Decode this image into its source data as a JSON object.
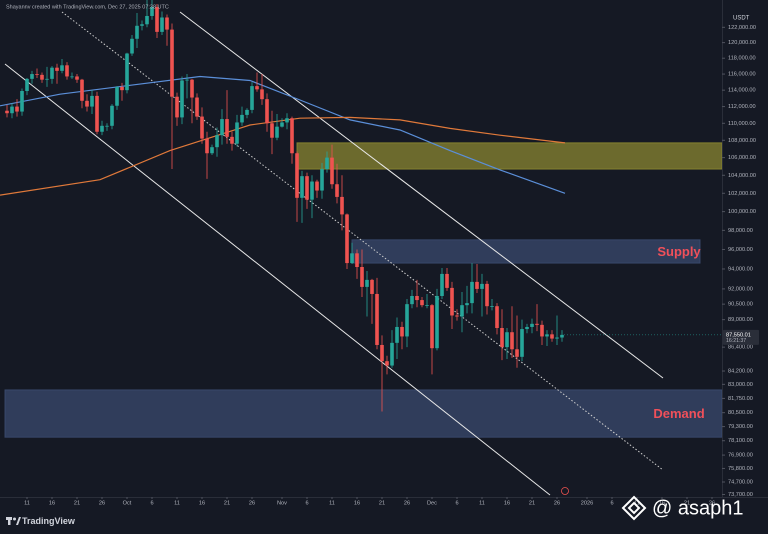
{
  "chart_data": {
    "type": "candlestick",
    "source_note": "Shayannv created with TradingView.com, Dec 27, 2025 07:38 UTC",
    "currency": "USDT",
    "brand": "TradingView",
    "watermark": "@ asaph1",
    "log_scale": true,
    "grid": false,
    "ylim": [
      73500,
      124300
    ],
    "xlim": [
      -5.4,
      139
    ],
    "yticks": [
      {
        "value": 122000,
        "label": "122,000.00"
      },
      {
        "value": 120000,
        "label": "120,000.00"
      },
      {
        "value": 118000,
        "label": "118,000.00"
      },
      {
        "value": 116000,
        "label": "116,000.00"
      },
      {
        "value": 114000,
        "label": "114,000.00"
      },
      {
        "value": 112000,
        "label": "112,000.00"
      },
      {
        "value": 110000,
        "label": "110,000.00"
      },
      {
        "value": 108000,
        "label": "108,000.00"
      },
      {
        "value": 106000,
        "label": "106,000.00"
      },
      {
        "value": 104000,
        "label": "104,000.00"
      },
      {
        "value": 102000,
        "label": "102,000.00"
      },
      {
        "value": 100000,
        "label": "100,000.00"
      },
      {
        "value": 98000,
        "label": "98,000.00"
      },
      {
        "value": 96000,
        "label": "96,000.00"
      },
      {
        "value": 94000,
        "label": "94,000.00"
      },
      {
        "value": 92000,
        "label": "92,000.00"
      },
      {
        "value": 90500,
        "label": "90,500.00"
      },
      {
        "value": 89000,
        "label": "89,000.00"
      },
      {
        "value": 86400,
        "label": "86,400.00"
      },
      {
        "value": 84200,
        "label": "84,200.00"
      },
      {
        "value": 83000,
        "label": "83,000.00"
      },
      {
        "value": 81750,
        "label": "81,750.00"
      },
      {
        "value": 80500,
        "label": "80,500.00"
      },
      {
        "value": 79300,
        "label": "79,300.00"
      },
      {
        "value": 78100,
        "label": "78,100.00"
      },
      {
        "value": 76900,
        "label": "76,900.00"
      },
      {
        "value": 75800,
        "label": "75,800.00"
      },
      {
        "value": 74700,
        "label": "74,700.00"
      },
      {
        "value": 73700,
        "label": "73,700.00"
      }
    ],
    "xticks": [
      {
        "value": 0,
        "label": "11"
      },
      {
        "value": 5,
        "label": "16"
      },
      {
        "value": 10,
        "label": "21"
      },
      {
        "value": 15,
        "label": "26"
      },
      {
        "value": 20,
        "label": "Oct"
      },
      {
        "value": 25,
        "label": "6"
      },
      {
        "value": 30,
        "label": "11"
      },
      {
        "value": 35,
        "label": "16"
      },
      {
        "value": 40,
        "label": "21"
      },
      {
        "value": 45,
        "label": "26"
      },
      {
        "value": 51,
        "label": "Nov"
      },
      {
        "value": 56,
        "label": "6"
      },
      {
        "value": 61,
        "label": "11"
      },
      {
        "value": 66,
        "label": "16"
      },
      {
        "value": 71,
        "label": "21"
      },
      {
        "value": 76,
        "label": "26"
      },
      {
        "value": 81,
        "label": "Dec"
      },
      {
        "value": 86,
        "label": "6"
      },
      {
        "value": 91,
        "label": "11"
      },
      {
        "value": 96,
        "label": "16"
      },
      {
        "value": 101,
        "label": "21"
      },
      {
        "value": 106,
        "label": "26"
      },
      {
        "value": 112,
        "label": "2026"
      },
      {
        "value": 117,
        "label": "6"
      },
      {
        "value": 122,
        "label": "11"
      },
      {
        "value": 127,
        "label": "16"
      },
      {
        "value": 132,
        "label": "21"
      },
      {
        "value": 137,
        "label": "26"
      }
    ],
    "up_color": "#26a69a",
    "down_color": "#ef5350",
    "x": [
      -4,
      -3,
      -2,
      -1,
      0,
      1,
      2,
      3,
      4,
      5,
      6,
      7,
      8,
      9,
      10,
      11,
      12,
      13,
      14,
      15,
      16,
      17,
      18,
      19,
      20,
      21,
      22,
      23,
      24,
      25,
      26,
      27,
      28,
      29,
      30,
      31,
      32,
      33,
      34,
      35,
      36,
      37,
      38,
      39,
      40,
      41,
      42,
      43,
      44,
      45,
      46,
      47,
      48,
      49,
      50,
      51,
      52,
      53,
      54,
      55,
      56,
      57,
      58,
      59,
      60,
      61,
      62,
      63,
      64,
      65,
      66,
      67,
      68,
      69,
      70,
      71,
      72,
      73,
      74,
      75,
      76,
      77,
      78,
      79,
      80,
      81,
      82,
      83,
      84,
      85,
      86,
      87,
      88,
      89,
      90,
      91,
      92,
      93,
      94,
      95,
      96,
      97,
      98,
      99,
      100,
      101,
      102,
      103,
      104,
      105,
      106,
      107
    ],
    "open": [
      111500,
      111200,
      112000,
      111400,
      113900,
      115400,
      116000,
      115900,
      115300,
      115400,
      116800,
      116400,
      117100,
      115700,
      115700,
      115300,
      112700,
      112000,
      113300,
      109000,
      109700,
      109700,
      112100,
      114400,
      114000,
      118600,
      120500,
      122200,
      122400,
      123500,
      124700,
      121400,
      123300,
      121700,
      113200,
      110700,
      115200,
      115300,
      113100,
      110800,
      108200,
      106500,
      107200,
      108600,
      110500,
      108400,
      107600,
      110100,
      111000,
      111600,
      114500,
      114100,
      112900,
      110000,
      108300,
      109600,
      110100,
      110600,
      106500,
      101500,
      103900,
      101300,
      103300,
      102300,
      104700,
      106000,
      103000,
      101600,
      99700,
      94600,
      95600,
      94200,
      92200,
      92900,
      91500,
      86600,
      85100,
      84700,
      86800,
      88300,
      87400,
      90500,
      91300,
      90900,
      90400,
      90400,
      86300,
      91300,
      93500,
      92100,
      89400,
      89300,
      90400,
      90600,
      92700,
      92000,
      92500,
      90300,
      90300,
      88200,
      86400,
      87800,
      86200,
      85500,
      88100,
      88300,
      88600,
      88500,
      87400,
      87600,
      87200,
      87300
    ],
    "high": [
      112200,
      112400,
      112900,
      114200,
      115500,
      116400,
      116700,
      116200,
      116900,
      117000,
      117300,
      117900,
      117500,
      116200,
      116000,
      115400,
      113500,
      114000,
      113800,
      110300,
      110000,
      112300,
      114500,
      114900,
      118700,
      121000,
      123900,
      122900,
      125700,
      126200,
      125100,
      124100,
      123700,
      122500,
      113700,
      115700,
      116000,
      115400,
      113600,
      111900,
      109000,
      107500,
      109500,
      111700,
      114000,
      109000,
      111000,
      112000,
      111800,
      115000,
      116200,
      116000,
      113600,
      111500,
      111100,
      110600,
      111200,
      110800,
      106700,
      104500,
      104300,
      104000,
      103500,
      105400,
      106700,
      107500,
      105300,
      104000,
      99800,
      96700,
      96000,
      96000,
      93800,
      93000,
      93100,
      87500,
      85600,
      88000,
      89200,
      88800,
      91000,
      91900,
      92900,
      91200,
      91500,
      90500,
      92000,
      94100,
      94100,
      92700,
      90000,
      91700,
      92300,
      94600,
      94500,
      93500,
      92800,
      91000,
      90600,
      90000,
      88200,
      90300,
      89400,
      89000,
      88600,
      89100,
      90500,
      88900,
      88000,
      88000,
      89400,
      88000
    ],
    "low": [
      110700,
      110600,
      110800,
      110900,
      113400,
      114800,
      115500,
      114900,
      114400,
      114800,
      114800,
      116100,
      115300,
      115400,
      114900,
      111800,
      111400,
      111100,
      108700,
      108600,
      109100,
      109300,
      111600,
      112700,
      113600,
      118300,
      119300,
      121600,
      122000,
      123000,
      120600,
      121000,
      119600,
      104700,
      109700,
      109900,
      113000,
      110000,
      110400,
      107600,
      103600,
      106300,
      106100,
      107500,
      107600,
      106800,
      107300,
      109700,
      110600,
      111200,
      113800,
      112200,
      109000,
      106400,
      108000,
      109500,
      109300,
      105300,
      98900,
      98800,
      100300,
      99300,
      101500,
      101400,
      104300,
      102500,
      100900,
      98000,
      94000,
      94500,
      93000,
      91200,
      89300,
      88600,
      86200,
      80600,
      83900,
      84500,
      85300,
      86200,
      86400,
      90100,
      90200,
      90200,
      90100,
      83900,
      86100,
      91000,
      91800,
      88100,
      88900,
      87800,
      89600,
      89600,
      91600,
      89300,
      89500,
      89900,
      87600,
      85200,
      85300,
      85400,
      84500,
      85100,
      87700,
      87700,
      87900,
      86600,
      86500,
      86900,
      86600,
      86900
    ],
    "close": [
      111200,
      112000,
      111400,
      113900,
      115400,
      116000,
      115900,
      115300,
      115400,
      116800,
      116400,
      117100,
      115700,
      115700,
      115300,
      112700,
      112000,
      113300,
      109000,
      109700,
      109700,
      112100,
      114400,
      114000,
      118600,
      120500,
      122200,
      122400,
      123500,
      124700,
      121400,
      123300,
      121700,
      113200,
      110700,
      115200,
      115300,
      113100,
      110800,
      108200,
      106500,
      107200,
      108600,
      110500,
      108400,
      107600,
      110100,
      111000,
      111600,
      114500,
      114100,
      112900,
      110000,
      108300,
      109600,
      110100,
      110600,
      106500,
      101500,
      103900,
      101300,
      103300,
      102300,
      104700,
      106000,
      103000,
      101600,
      99700,
      94600,
      95600,
      94200,
      92200,
      92900,
      91500,
      86600,
      85100,
      84700,
      86800,
      88300,
      87400,
      90500,
      91300,
      90900,
      90400,
      90400,
      86300,
      91300,
      93500,
      92100,
      89400,
      89300,
      90400,
      90600,
      92700,
      92000,
      92500,
      90300,
      90300,
      88200,
      86400,
      87800,
      86200,
      85500,
      88100,
      88300,
      88600,
      88500,
      87400,
      87600,
      87200,
      87300,
      87550
    ],
    "last_price": {
      "value": 87550.01,
      "label": "87,550.01"
    },
    "countdown": "16:21:37",
    "moving_averages": [
      {
        "color": "#5b8fd9",
        "x": [
          -5.4,
          6.6,
          20.6,
          34.6,
          44.6,
          54.6,
          64.6,
          74.6,
          84.6,
          94.6,
          107.6
        ],
        "values": [
          112100,
          113500,
          114600,
          115700,
          115200,
          112800,
          110400,
          109200,
          106800,
          104600,
          102000
        ]
      },
      {
        "color": "#e0793a",
        "x": [
          -5.4,
          14.6,
          28.6,
          44.6,
          54.6,
          64.6,
          74.6,
          84.6,
          94.6,
          107.6
        ],
        "values": [
          101800,
          103500,
          106800,
          109800,
          110600,
          110700,
          110400,
          109400,
          108600,
          107700
        ]
      }
    ],
    "zones": [
      {
        "top": 107700,
        "bottom": 104700,
        "start": 54,
        "color": "#8a8530"
      },
      {
        "label": "Supply",
        "top": 97000,
        "bottom": 94600,
        "start": 65,
        "end": 134.6,
        "color": "#3a4a6e"
      },
      {
        "label": "Demand",
        "top": 82500,
        "bottom": 78400,
        "start": -4.4,
        "color": "#3a4a6e"
      }
    ]
  }
}
